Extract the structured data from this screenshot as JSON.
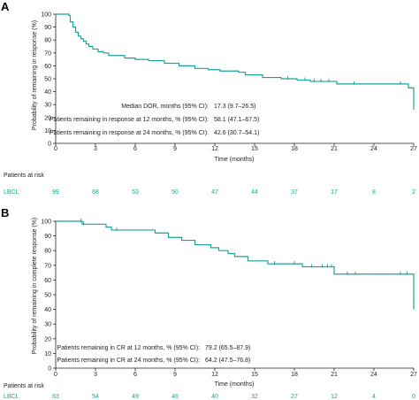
{
  "chart_data": [
    {
      "panel_label": "A",
      "type": "line",
      "step": true,
      "xlabel": "Time (months)",
      "ylabel": "Probability of remaining in response (%)",
      "xlim": [
        0,
        27
      ],
      "ylim": [
        0,
        100
      ],
      "xticks": [
        "0",
        "3",
        "6",
        "9",
        "12",
        "15",
        "18",
        "21",
        "24",
        "27"
      ],
      "yticks": [
        "0",
        "10",
        "20",
        "30",
        "40",
        "50",
        "60",
        "70",
        "80",
        "90",
        "100"
      ],
      "color": "#1aa39a",
      "series": [
        {
          "x": [
            0,
            1.0,
            1.1,
            1.3,
            1.5,
            1.7,
            1.9,
            2.1,
            2.3,
            2.5,
            2.8,
            3.2,
            3.6,
            4.0,
            5.2,
            6.0,
            7.0,
            8.2,
            9.3,
            10.5,
            11.5,
            12.4,
            13.8,
            14.3,
            15.6,
            17.0,
            18.2,
            19.2,
            21.2,
            26.6,
            27.0
          ],
          "y": [
            100,
            99,
            94,
            90,
            86,
            83,
            81,
            79,
            77,
            75,
            73,
            71,
            70,
            68,
            66,
            65,
            64,
            62,
            60,
            58,
            57,
            56,
            55,
            53,
            51,
            50,
            49,
            48,
            46,
            43,
            26
          ]
        }
      ],
      "stats": [
        {
          "label": "Median DOR, months (95% CI):",
          "value": "17.3 (9.7–26.5)"
        },
        {
          "label": "Patients remaining in response at 12 months, % (95% CI):",
          "value": "58.1 (47.1–67.5)"
        },
        {
          "label": "Patients remaining in response at 24 months, % (95% CI):",
          "value": "42.6 (30.7–54.1)"
        }
      ],
      "risk_table": {
        "title": "Patients at risk",
        "row_label": "LBCL",
        "values": [
          "99",
          "68",
          "53",
          "50",
          "47",
          "44",
          "37",
          "17",
          "8",
          "2"
        ]
      }
    },
    {
      "panel_label": "B",
      "type": "line",
      "step": true,
      "xlabel": "Time (months)",
      "ylabel": "Probability of remaining in complete response (%)",
      "xlim": [
        0,
        27
      ],
      "ylim": [
        0,
        100
      ],
      "xticks": [
        "0",
        "3",
        "6",
        "9",
        "12",
        "15",
        "18",
        "21",
        "24",
        "27"
      ],
      "yticks": [
        "0",
        "10",
        "20",
        "30",
        "40",
        "50",
        "60",
        "70",
        "80",
        "90",
        "100"
      ],
      "color": "#1aa39a",
      "series": [
        {
          "x": [
            0,
            2.0,
            3.8,
            4.2,
            7.5,
            8.5,
            9.5,
            10.5,
            11.7,
            12.3,
            13.0,
            13.5,
            14.5,
            16.0,
            18.6,
            21.0,
            25.6,
            27.0
          ],
          "y": [
            100,
            98,
            96,
            94,
            92,
            89,
            87,
            84,
            82,
            80,
            78,
            76,
            73,
            71,
            69,
            64,
            64,
            40
          ]
        }
      ],
      "stats": [
        {
          "label": "Patients remaining in CR at 12 months, % (95% CI):",
          "value": "79.2 (65.5–87.9)"
        },
        {
          "label": "Patients remaining in CR at 24 months, % (95% CI):",
          "value": "64.2 (47.5–76.8)"
        }
      ],
      "risk_table": {
        "title": "Patients at risk",
        "row_label": "LBCL",
        "values": [
          "63",
          "54",
          "49",
          "46",
          "40",
          "32",
          "27",
          "12",
          "4",
          "0"
        ]
      }
    }
  ]
}
